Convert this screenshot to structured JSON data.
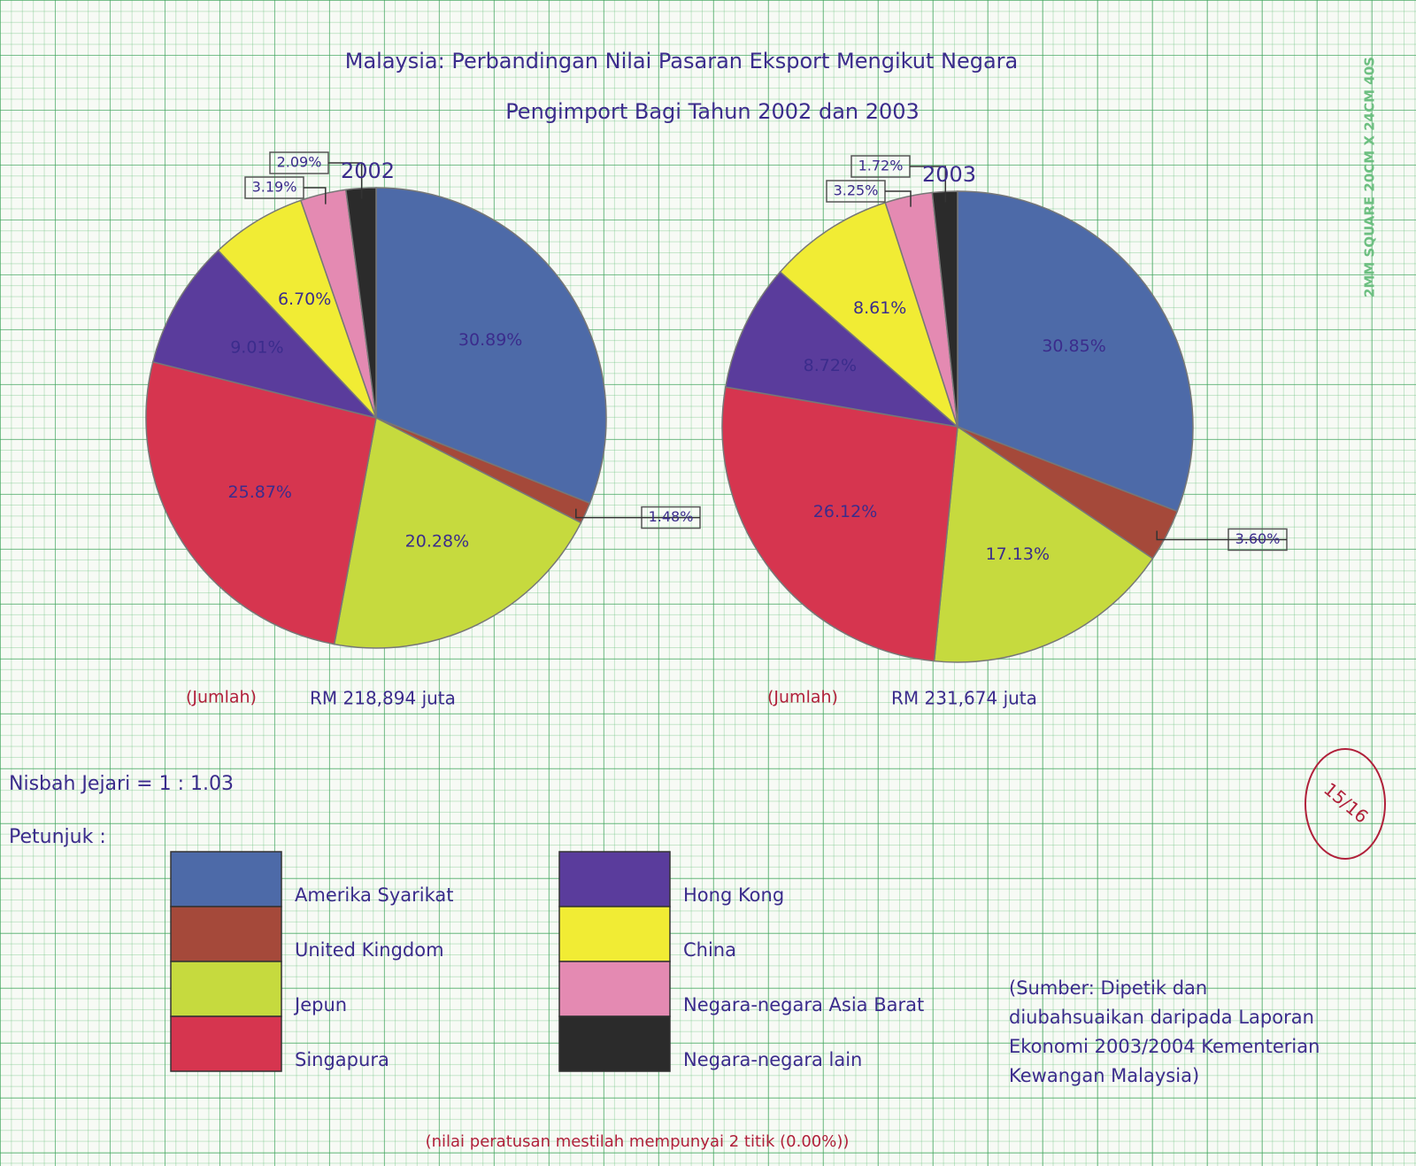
{
  "title": "Malaysia: Perbandingan Nilai Pasaran Eksport Mengikut Negara",
  "subtitle": "Pengimport Bagi Tahun 2002 dan 2003",
  "chart_data": [
    {
      "type": "pie",
      "title": "2002",
      "categories": [
        "Amerika Syarikat",
        "United Kingdom",
        "Jepun",
        "Singapura",
        "Hong Kong",
        "China",
        "Negara-negara Asia Barat",
        "Negara-negara lain"
      ],
      "values": [
        30.89,
        1.48,
        20.28,
        25.87,
        9.01,
        6.7,
        3.19,
        2.09
      ],
      "value_labels": [
        "30.89%",
        "1.48%",
        "20.28%",
        "25.87%",
        "9.01%",
        "6.70%",
        "3.19%",
        "2.09%"
      ],
      "colors": [
        "#4d6aa8",
        "#a5493a",
        "#c6da3e",
        "#d6354f",
        "#5a3c9c",
        "#f1ec34",
        "#e48ab2",
        "#2b2b2b"
      ],
      "total_label": "(Jumlah)",
      "total": "RM 218,894 juta"
    },
    {
      "type": "pie",
      "title": "2003",
      "categories": [
        "Amerika Syarikat",
        "United Kingdom",
        "Jepun",
        "Singapura",
        "Hong Kong",
        "China",
        "Negara-negara Asia Barat",
        "Negara-negara lain"
      ],
      "values": [
        30.85,
        3.6,
        17.13,
        26.12,
        8.72,
        8.61,
        3.25,
        1.72
      ],
      "value_labels": [
        "30.85%",
        "3.60%",
        "17.13%",
        "26.12%",
        "8.72%",
        "8.61%",
        "3.25%",
        "1.72%"
      ],
      "colors": [
        "#4d6aa8",
        "#a5493a",
        "#c6da3e",
        "#d6354f",
        "#5a3c9c",
        "#f1ec34",
        "#e48ab2",
        "#2b2b2b"
      ],
      "total_label": "(Jumlah)",
      "total": "RM 231,674 juta"
    }
  ],
  "radius_ratio": "Nisbah Jejari = 1 : 1.03",
  "legend_title": "Petunjuk :",
  "source": "(Sumber: Dipetik dan diubahsuaikan daripada Laporan Ekonomi 2003/2004 Kementerian Kewangan Malaysia)",
  "note": "(nilai peratusan mestilah mempunyai 2 titik (0.00%))",
  "grade": "15/16",
  "paper_label": "2MM SQUARE 20CM X 24CM 40S"
}
